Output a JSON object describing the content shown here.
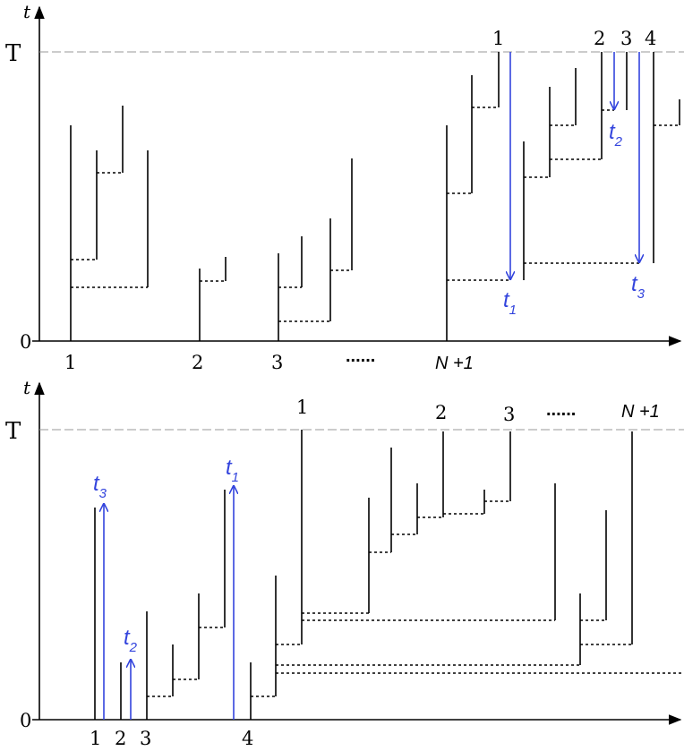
{
  "colors": {
    "ink": "#000000",
    "arrow": "#3344dd",
    "horizon": "#999999"
  },
  "panels": {
    "top": {
      "y_axis_label": "t",
      "horizon_label": "T",
      "origin_label": "0",
      "x_tick_labels": [
        "1",
        "2",
        "3",
        "N +1"
      ],
      "ellipsis": "......",
      "column_labels": [
        "1",
        "2",
        "3",
        "4"
      ],
      "arrow_labels": {
        "t1": {
          "base": "t",
          "sub": "1"
        },
        "t2": {
          "base": "t",
          "sub": "2"
        },
        "t3": {
          "base": "t",
          "sub": "3"
        }
      }
    },
    "bottom": {
      "y_axis_label": "t",
      "horizon_label": "T",
      "origin_label": "0",
      "x_tick_labels": [
        "1",
        "2",
        "3",
        "4"
      ],
      "column_labels": [
        "1",
        "2",
        "3",
        "N +1"
      ],
      "ellipsis": "......",
      "arrow_labels": {
        "t1": {
          "base": "t",
          "sub": "1"
        },
        "t2": {
          "base": "t",
          "sub": "2"
        },
        "t3": {
          "base": "t",
          "sub": "3"
        }
      }
    }
  }
}
